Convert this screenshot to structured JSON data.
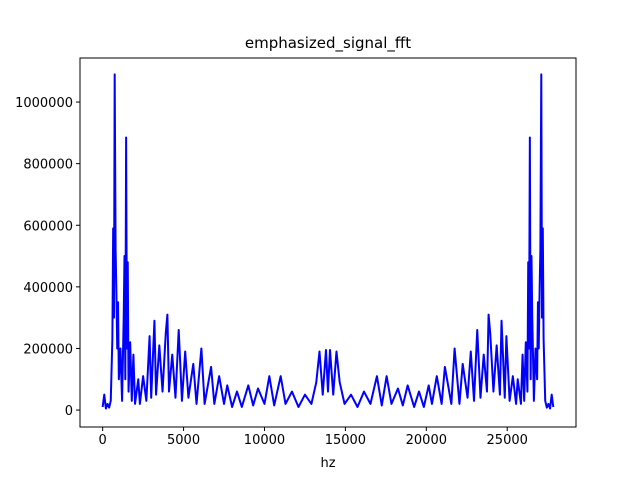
{
  "chart_data": {
    "type": "line",
    "title": "emphasized_signal_fft",
    "xlabel": "hz",
    "x": [
      0,
      100,
      200,
      300,
      400,
      500,
      600,
      650,
      700,
      743,
      800,
      850,
      900,
      950,
      1000,
      1100,
      1200,
      1300,
      1350,
      1400,
      1450,
      1500,
      1550,
      1600,
      1700,
      1800,
      1900,
      2000,
      2200,
      2300,
      2500,
      2700,
      2900,
      3000,
      3200,
      3300,
      3500,
      3700,
      3900,
      4000,
      4100,
      4300,
      4500,
      4700,
      4900,
      5100,
      5300,
      5600,
      5800,
      6100,
      6300,
      6700,
      6900,
      7200,
      7500,
      7700,
      8000,
      8300,
      8600,
      9000,
      9300,
      9600,
      10000,
      10300,
      10600,
      11000,
      11300,
      11700,
      12100,
      12500,
      12900,
      13200,
      13400,
      13600,
      13800,
      13924,
      14048,
      14248,
      14448,
      14648,
      14948,
      15348,
      15748,
      16148,
      16548,
      16948,
      17248,
      17548,
      17848,
      18248,
      18548,
      18848,
      19248,
      19548,
      19848,
      20148,
      20348,
      20648,
      20948,
      21148,
      21548,
      21748,
      22048,
      22248,
      22548,
      22748,
      22948,
      23148,
      23348,
      23548,
      23748,
      23848,
      23948,
      24148,
      24348,
      24548,
      24648,
      24848,
      24948,
      25148,
      25348,
      25548,
      25648,
      25848,
      25948,
      26048,
      26148,
      26248,
      26298,
      26348,
      26398,
      26448,
      26498,
      26548,
      26648,
      26748,
      26848,
      26898,
      26948,
      26998,
      27048,
      27105,
      27148,
      27198,
      27248,
      27348,
      27448,
      27548,
      27648,
      27748,
      27848
    ],
    "series": [
      {
        "color": "#0000ff",
        "values": [
          10000,
          50000,
          5000,
          20000,
          8000,
          30000,
          230000,
          590000,
          300000,
          1090000,
          520000,
          380000,
          200000,
          350000,
          100000,
          200000,
          30000,
          300000,
          500000,
          100000,
          885000,
          200000,
          480000,
          60000,
          220000,
          30000,
          180000,
          20000,
          100000,
          20000,
          110000,
          30000,
          240000,
          40000,
          290000,
          50000,
          210000,
          60000,
          250000,
          310000,
          60000,
          180000,
          40000,
          260000,
          30000,
          190000,
          40000,
          150000,
          20000,
          200000,
          20000,
          140000,
          20000,
          110000,
          20000,
          80000,
          10000,
          60000,
          10000,
          80000,
          15000,
          70000,
          20000,
          110000,
          15000,
          110000,
          20000,
          60000,
          10000,
          50000,
          20000,
          90000,
          190000,
          50000,
          195000,
          60000,
          195000,
          50000,
          190000,
          90000,
          20000,
          50000,
          10000,
          60000,
          20000,
          110000,
          15000,
          110000,
          20000,
          70000,
          15000,
          80000,
          10000,
          60000,
          10000,
          80000,
          20000,
          110000,
          20000,
          140000,
          20000,
          200000,
          20000,
          150000,
          40000,
          190000,
          30000,
          260000,
          40000,
          180000,
          60000,
          310000,
          250000,
          60000,
          210000,
          50000,
          290000,
          40000,
          240000,
          30000,
          110000,
          20000,
          100000,
          20000,
          180000,
          30000,
          220000,
          60000,
          480000,
          200000,
          885000,
          100000,
          500000,
          300000,
          30000,
          200000,
          100000,
          350000,
          200000,
          380000,
          520000,
          1090000,
          300000,
          590000,
          230000,
          30000,
          8000,
          20000,
          5000,
          50000,
          10000
        ]
      }
    ],
    "xlim": [
      -1400,
      29250
    ],
    "ylim": [
      -55000,
      1143000
    ],
    "xticks": [
      0,
      5000,
      10000,
      15000,
      20000,
      25000
    ],
    "yticks": [
      0,
      200000,
      400000,
      600000,
      800000,
      1000000
    ]
  }
}
